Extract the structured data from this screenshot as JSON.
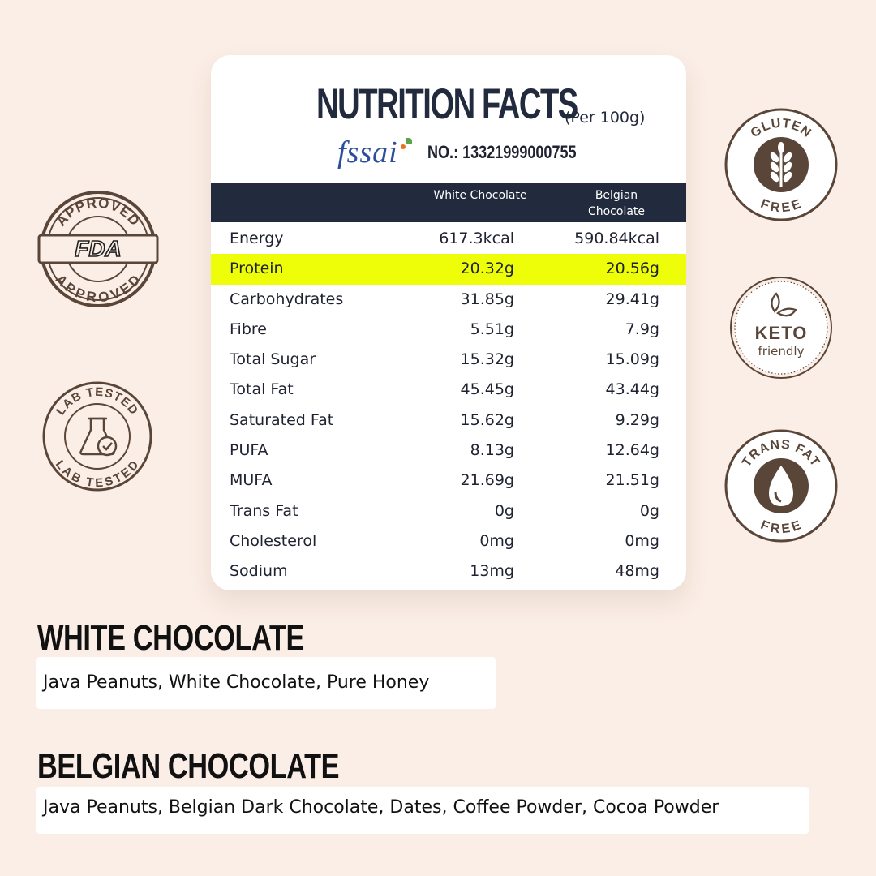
{
  "nutrition": {
    "title": "NUTRITION FACTS",
    "per": "(Per 100g)",
    "fssai_logo": "fssai",
    "fssai_no": "NO.: 13321999000755",
    "columns": {
      "white": "White Chocolate",
      "belgian": "Belgian Chocolate"
    },
    "rows": [
      {
        "name": "Energy",
        "white": "617.3kcal",
        "belgian": "590.84kcal"
      },
      {
        "name": "Protein",
        "white": "20.32g",
        "belgian": "20.56g"
      },
      {
        "name": "Carbohydrates",
        "white": "31.85g",
        "belgian": "29.41g"
      },
      {
        "name": "Fibre",
        "white": "5.51g",
        "belgian": "7.9g"
      },
      {
        "name": "Total Sugar",
        "white": "15.32g",
        "belgian": "15.09g"
      },
      {
        "name": "Total Fat",
        "white": "45.45g",
        "belgian": "43.44g"
      },
      {
        "name": "Saturated Fat",
        "white": "15.62g",
        "belgian": "9.29g"
      },
      {
        "name": "PUFA",
        "white": "8.13g",
        "belgian": "12.64g"
      },
      {
        "name": "MUFA",
        "white": "21.69g",
        "belgian": "21.51g"
      },
      {
        "name": "Trans Fat",
        "white": "0g",
        "belgian": "0g"
      },
      {
        "name": "Cholesterol",
        "white": "0mg",
        "belgian": "0mg"
      },
      {
        "name": "Sodium",
        "white": "13mg",
        "belgian": "48mg"
      }
    ],
    "highlight_color": "#eefe08",
    "header_color": "#222b3e"
  },
  "white_chocolate": {
    "title": "WHITE CHOCOLATE",
    "ingredients": "Java Peanuts, White Chocolate, Pure Honey"
  },
  "belgian_chocolate": {
    "title": "BELGIAN CHOCOLATE",
    "ingredients": "Java Peanuts, Belgian Dark Chocolate, Dates, Coffee Powder, Cocoa Powder"
  },
  "badges": {
    "fda": {
      "icon": "fda-approved-stamp-icon",
      "top_text": "APPROVED",
      "center_text": "FDA",
      "bottom_text": "APPROVED"
    },
    "lab": {
      "icon": "lab-tested-flask-icon",
      "top_text": "LAB TESTED",
      "bottom_text": "LAB TESTED"
    },
    "gluten": {
      "icon": "wheat-icon",
      "top_text": "GLUTEN",
      "bottom_text": "FREE"
    },
    "keto": {
      "icon": "keto-leaves-icon",
      "text": "KETO",
      "subtext": "friendly"
    },
    "transfat": {
      "icon": "oil-drop-icon",
      "top_text": "TRANS FAT",
      "bottom_text": "FREE"
    },
    "badge_color": "#5a4638"
  }
}
